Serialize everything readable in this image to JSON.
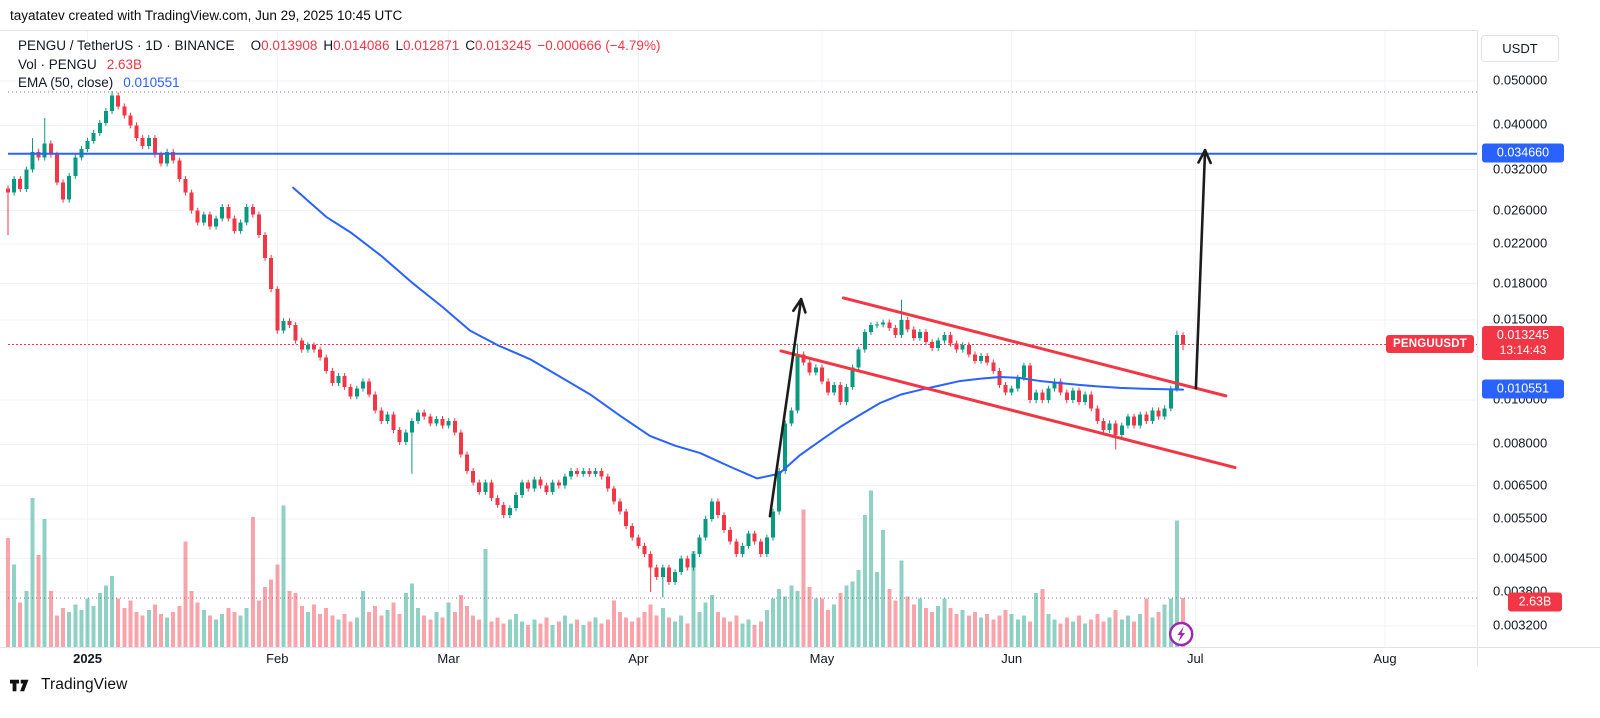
{
  "attribution": "tayatatev created with TradingView.com, Jun 29, 2025 10:45 UTC",
  "legend": {
    "symbol_title": "PENGU / TetherUS · 1D · BINANCE",
    "o_label": "O",
    "o_value": "0.013908",
    "h_label": "H",
    "h_value": "0.014086",
    "l_label": "L",
    "l_value": "0.012871",
    "c_label": "C",
    "c_value": "0.013245",
    "change": "−0.000666 (−4.79%)",
    "vol_title": "Vol · PENGU",
    "vol_value": "2.63B",
    "ema_title": "EMA (50, close)",
    "ema_value": "0.010551"
  },
  "price_axis": {
    "currency_button": "USDT",
    "ticks": [
      {
        "label": "0.050000",
        "price": 0.05
      },
      {
        "label": "0.040000",
        "price": 0.04
      },
      {
        "label": "0.032000",
        "price": 0.032
      },
      {
        "label": "0.026000",
        "price": 0.026
      },
      {
        "label": "0.022000",
        "price": 0.022
      },
      {
        "label": "0.018000",
        "price": 0.018
      },
      {
        "label": "0.015000",
        "price": 0.015
      },
      {
        "label": "0.010000",
        "price": 0.01
      },
      {
        "label": "0.008000",
        "price": 0.008
      },
      {
        "label": "0.006500",
        "price": 0.0065
      },
      {
        "label": "0.005500",
        "price": 0.0055
      },
      {
        "label": "0.004500",
        "price": 0.0045
      },
      {
        "label": "0.003800",
        "price": 0.0038
      },
      {
        "label": "0.003200",
        "price": 0.0032
      }
    ],
    "badges": [
      {
        "name": "resistance-price-badge",
        "label": "0.034660",
        "price": 0.03466,
        "color": "blue"
      },
      {
        "name": "last-price-badge",
        "label": "0.013245",
        "sublabel": "13:14:43",
        "price": 0.013245,
        "color": "red"
      },
      {
        "name": "ema-price-badge",
        "label": "0.010551",
        "price": 0.010551,
        "color": "blue"
      },
      {
        "name": "volume-badge",
        "label": "2.63B",
        "volume_b": 2.63,
        "color": "red",
        "small": true
      }
    ],
    "symbol_badge": {
      "label": "PENGUUSDT",
      "price": 0.013245
    }
  },
  "time_axis": {
    "months": [
      {
        "label": "2025",
        "day": 13,
        "bold": true
      },
      {
        "label": "Feb",
        "day": 44
      },
      {
        "label": "Mar",
        "day": 72
      },
      {
        "label": "Apr",
        "day": 103
      },
      {
        "label": "May",
        "day": 133
      },
      {
        "label": "Jun",
        "day": 164
      },
      {
        "label": "Jul",
        "day": 194
      },
      {
        "label": "Aug",
        "day": 225
      }
    ]
  },
  "footer": {
    "brand": "TradingView"
  },
  "colors": {
    "background": "#FFFFFF",
    "text": "#131722",
    "muted_text": "#787B86",
    "grid": "#F0F3FA",
    "axis_border": "#E0E3EB",
    "candle_up": "#089981",
    "candle_down": "#F23645",
    "volume_up": "rgba(8,153,129,0.45)",
    "volume_down": "rgba(242,54,69,0.45)",
    "ema_blue": "#2962FF",
    "level_blue": "#2962FF",
    "current_price_red": "#F23645",
    "channel_red": "#F23645",
    "arrow_black": "#1C1C1C",
    "flash_purple": "#9C27B0"
  },
  "chart_data": {
    "type": "candlestick",
    "symbol": "PENGU/USDT",
    "exchange": "BINANCE",
    "interval": "1D",
    "start_date": "2024-12-19",
    "end_date": "2025-06-29",
    "units_note": "closes_milli are closes in 0.001 USDT; volumes in billions PENGU",
    "ylim": [
      0.0029,
      0.052
    ],
    "closes_milli": [
      28.5,
      30.5,
      29.0,
      32.0,
      35.0,
      34.0,
      36.5,
      34.5,
      30.0,
      27.5,
      31.0,
      34.0,
      35.5,
      37.0,
      38.5,
      40.5,
      43.0,
      46.5,
      44.0,
      42.0,
      40.0,
      37.5,
      36.0,
      37.5,
      34.5,
      33.0,
      35.0,
      33.5,
      30.5,
      28.5,
      26.0,
      24.5,
      25.5,
      24.0,
      25.0,
      26.5,
      25.0,
      23.5,
      24.5,
      26.5,
      25.5,
      23.0,
      20.5,
      17.5,
      14.2,
      14.9,
      14.6,
      13.5,
      12.9,
      13.2,
      12.9,
      12.4,
      11.6,
      10.9,
      11.3,
      10.7,
      10.2,
      10.6,
      11.0,
      10.3,
      9.5,
      9.0,
      9.3,
      8.6,
      8.1,
      8.5,
      9.0,
      9.4,
      9.2,
      8.9,
      9.1,
      8.8,
      9.0,
      8.5,
      7.6,
      7.0,
      6.6,
      6.3,
      6.6,
      6.1,
      5.9,
      5.6,
      5.8,
      6.2,
      6.6,
      6.4,
      6.7,
      6.5,
      6.3,
      6.6,
      6.5,
      6.8,
      7.0,
      6.9,
      7.0,
      6.9,
      7.0,
      6.8,
      6.4,
      6.0,
      5.7,
      5.3,
      5.0,
      4.8,
      4.6,
      4.3,
      4.1,
      4.3,
      4.0,
      4.2,
      4.5,
      4.3,
      4.6,
      5.0,
      5.5,
      6.0,
      5.6,
      5.2,
      4.9,
      4.6,
      4.8,
      5.1,
      4.9,
      4.6,
      5.0,
      5.7,
      7.0,
      8.9,
      9.5,
      12.6,
      12.1,
      11.5,
      11.8,
      11.0,
      10.4,
      10.8,
      9.9,
      10.7,
      11.8,
      12.9,
      14.1,
      14.6,
      14.65,
      14.8,
      14.4,
      13.9,
      15.0,
      14.3,
      13.7,
      14.1,
      13.4,
      13.0,
      13.5,
      13.9,
      13.3,
      12.9,
      13.2,
      12.6,
      12.2,
      12.5,
      12.1,
      11.6,
      10.8,
      10.4,
      10.6,
      11.2,
      11.9,
      10.0,
      10.4,
      10.0,
      10.6,
      11.0,
      10.4,
      10.0,
      10.5,
      9.9,
      10.3,
      9.6,
      9.0,
      8.6,
      8.9,
      8.4,
      8.8,
      9.2,
      8.8,
      9.3,
      9.0,
      9.5,
      9.2,
      9.6,
      10.6,
      13.9,
      13.245
    ],
    "volumes_billions": [
      5.8,
      4.4,
      2.4,
      3.0,
      7.9,
      4.9,
      6.8,
      3.0,
      1.7,
      2.1,
      1.9,
      2.3,
      2.0,
      2.6,
      2.2,
      2.9,
      3.3,
      3.8,
      2.6,
      2.1,
      2.5,
      1.9,
      1.7,
      2.0,
      2.3,
      1.8,
      1.6,
      1.9,
      2.2,
      5.6,
      3.0,
      2.4,
      2.0,
      1.7,
      1.5,
      1.8,
      2.1,
      1.9,
      1.7,
      2.1,
      6.9,
      2.5,
      3.2,
      3.6,
      4.4,
      7.5,
      3.0,
      2.9,
      2.2,
      1.9,
      2.3,
      1.8,
      2.1,
      1.7,
      1.5,
      1.8,
      1.4,
      1.6,
      3.0,
      1.9,
      2.2,
      1.7,
      2.0,
      2.4,
      1.8,
      2.9,
      3.4,
      2.1,
      1.7,
      1.5,
      1.9,
      1.6,
      2.4,
      1.9,
      2.8,
      2.2,
      1.7,
      1.5,
      5.2,
      1.4,
      1.6,
      1.3,
      1.5,
      1.8,
      1.4,
      1.2,
      1.5,
      1.3,
      1.6,
      1.2,
      1.4,
      1.7,
      1.3,
      1.5,
      1.2,
      1.4,
      1.6,
      1.3,
      1.5,
      2.5,
      1.9,
      1.6,
      1.4,
      1.6,
      1.9,
      2.3,
      1.7,
      2.1,
      1.6,
      1.4,
      1.7,
      1.3,
      5.1,
      1.9,
      2.4,
      2.8,
      1.9,
      1.6,
      1.4,
      1.7,
      1.3,
      1.5,
      1.2,
      1.4,
      2.0,
      2.6,
      3.1,
      2.7,
      3.3,
      3.0,
      7.3,
      3.2,
      2.6,
      2.6,
      2.0,
      2.3,
      2.9,
      3.3,
      3.5,
      4.1,
      7.0,
      8.3,
      4.0,
      6.2,
      3.1,
      2.5,
      4.6,
      2.7,
      2.3,
      2.6,
      2.1,
      1.9,
      2.2,
      2.6,
      2.1,
      1.8,
      2.0,
      1.7,
      1.9,
      1.6,
      1.8,
      1.5,
      1.7,
      2.0,
      1.8,
      1.5,
      1.7,
      1.4,
      2.9,
      3.1,
      1.8,
      1.5,
      1.3,
      1.6,
      1.4,
      1.7,
      1.3,
      1.5,
      1.8,
      1.4,
      1.6,
      2.0,
      1.5,
      1.7,
      1.4,
      1.8,
      2.6,
      1.6,
      1.9,
      2.3,
      2.6,
      6.7,
      2.63
    ],
    "wick_overrides_milli": {
      "0": {
        "l": 23.0
      },
      "4": {
        "h": 37.5
      },
      "6": {
        "h": 41.5
      },
      "17": {
        "h": 47.5
      },
      "66": {
        "l": 6.9
      },
      "105": {
        "l": 3.8
      },
      "107": {
        "l": 3.7
      },
      "129": {
        "h": 13.3
      },
      "146": {
        "h": 16.6
      },
      "181": {
        "l": 7.8
      },
      "191": {
        "h": 14.2
      },
      "192": {
        "o": 13.908,
        "h": 14.086,
        "l": 12.871
      }
    },
    "last_candle": {
      "open": 0.013908,
      "high": 0.014086,
      "low": 0.012871,
      "close": 0.013245,
      "change": -0.000666,
      "change_pct": -4.79,
      "countdown": "13:14:43"
    },
    "ema50_last": 0.010551,
    "ema_points": [
      [
        46.6,
        0.0292
      ],
      [
        52,
        0.0252
      ],
      [
        56,
        0.0233
      ],
      [
        61,
        0.0207
      ],
      [
        66,
        0.0181
      ],
      [
        71,
        0.016
      ],
      [
        75.5,
        0.0142
      ],
      [
        80,
        0.0132
      ],
      [
        85.3,
        0.0123
      ],
      [
        90,
        0.0113
      ],
      [
        95.1,
        0.0103
      ],
      [
        100,
        0.00925
      ],
      [
        104.9,
        0.00835
      ],
      [
        109,
        0.00795
      ],
      [
        113.1,
        0.00766
      ],
      [
        118,
        0.00715
      ],
      [
        122.4,
        0.00674
      ],
      [
        126,
        0.0069
      ],
      [
        129.4,
        0.00758
      ],
      [
        133,
        0.0082
      ],
      [
        136,
        0.00874
      ],
      [
        139,
        0.00925
      ],
      [
        142.5,
        0.00986
      ],
      [
        146,
        0.0103
      ],
      [
        149,
        0.01053
      ],
      [
        152,
        0.01075
      ],
      [
        155.6,
        0.01102
      ],
      [
        159,
        0.01115
      ],
      [
        162.1,
        0.01124
      ],
      [
        165,
        0.0112
      ],
      [
        168.6,
        0.01102
      ],
      [
        172,
        0.0109
      ],
      [
        175.2,
        0.0108
      ],
      [
        178,
        0.01072
      ],
      [
        181.7,
        0.01064
      ],
      [
        185,
        0.0106
      ],
      [
        187.4,
        0.01058
      ],
      [
        190,
        0.01056
      ],
      [
        192,
        0.010551
      ]
    ],
    "levels": {
      "resistance_blue_line": 0.03466,
      "current_price_dotted": 0.013245,
      "range_high_dotted": 0.0473,
      "volume_dotted_billions": 2.63
    },
    "channel": {
      "upper": [
        [
          136.5,
          0.01675
        ],
        [
          199.0,
          0.01022
        ]
      ],
      "lower": [
        [
          126.3,
          0.01282
        ],
        [
          200.5,
          0.00712
        ]
      ]
    },
    "arrows": [
      {
        "from": [
          124.5,
          0.00557
        ],
        "to": [
          129.6,
          0.01665
        ]
      },
      {
        "from": [
          194.1,
          0.01062
        ],
        "to": [
          195.6,
          0.0353
        ]
      }
    ]
  }
}
